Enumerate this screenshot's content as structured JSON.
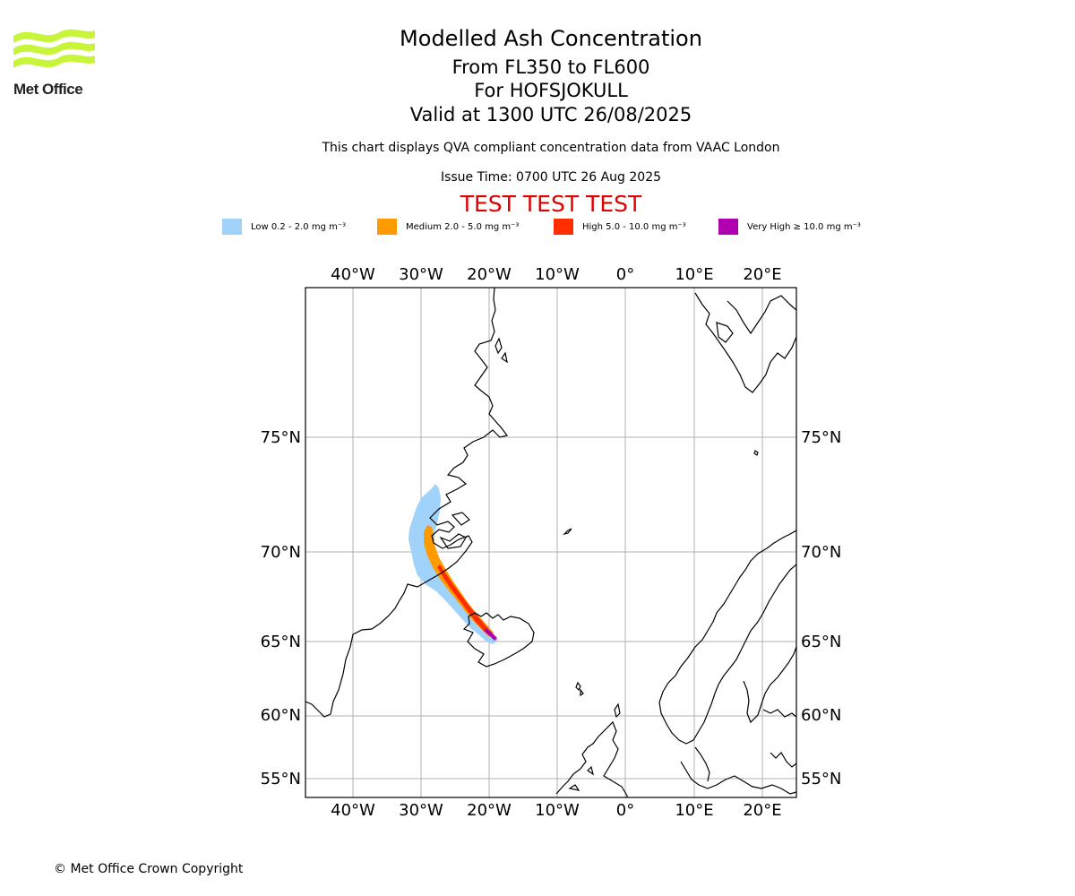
{
  "logo": {
    "text": "Met Office",
    "color": "#c8f53a"
  },
  "header": {
    "title": "Modelled Ash Concentration",
    "flight_levels": "From FL350 to FL600",
    "volcano": "For HOFSJOKULL",
    "valid": "Valid at 1300 UTC 26/08/2025",
    "subtitle": "This chart displays QVA compliant concentration data from VAAC London",
    "issue_time": "Issue Time: 0700 UTC 26 Aug 2025",
    "test_banner": "TEST TEST TEST"
  },
  "legend": [
    {
      "label": "Low 0.2 - 2.0 mg m⁻³",
      "color": "#a0d2fa"
    },
    {
      "label": "Medium 2.0 - 5.0 mg m⁻³",
      "color": "#ff9a00"
    },
    {
      "label": "High 5.0 - 10.0 mg m⁻³",
      "color": "#ff2e00"
    },
    {
      "label": "Very High ≥ 10.0 mg m⁻³",
      "color": "#b000b0"
    }
  ],
  "map": {
    "top_axis_labels": [
      "40°W",
      "30°W",
      "20°W",
      "10°W",
      "0°",
      "10°E",
      "20°E"
    ],
    "bottom_axis_labels": [
      "40°W",
      "30°W",
      "20°W",
      "10°W",
      "0°",
      "10°E",
      "20°E"
    ],
    "left_axis_labels": [
      "75°N",
      "70°N",
      "65°N",
      "60°N",
      "55°N"
    ],
    "right_axis_labels": [
      "75°N",
      "70°N",
      "65°N",
      "60°N",
      "55°N"
    ],
    "coastline_color": "#000000",
    "grid_color": "#b0b0b0"
  },
  "footer": {
    "copyright": "© Met Office Crown Copyright"
  }
}
